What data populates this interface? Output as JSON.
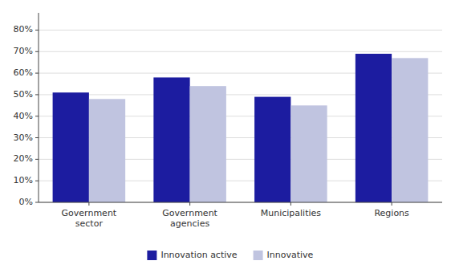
{
  "chart_data": {
    "type": "bar",
    "categories": [
      "Government\nsector",
      "Government\nagencies",
      "Municipalities",
      "Regions"
    ],
    "series": [
      {
        "name": "Innovation active",
        "color": "#1C1CA0",
        "values": [
          0.51,
          0.58,
          0.49,
          0.69
        ]
      },
      {
        "name": "Innovative",
        "color": "#C0C4E0",
        "values": [
          0.48,
          0.54,
          0.45,
          0.67
        ]
      }
    ],
    "ylim": [
      0,
      0.88
    ],
    "yticks": [
      {
        "value": 0.0,
        "label": "0%"
      },
      {
        "value": 0.1,
        "label": "10%"
      },
      {
        "value": 0.2,
        "label": "20%"
      },
      {
        "value": 0.3,
        "label": "30%"
      },
      {
        "value": 0.4,
        "label": "40%"
      },
      {
        "value": 0.5,
        "label": "50%"
      },
      {
        "value": 0.6,
        "label": "60%"
      },
      {
        "value": 0.7,
        "label": "70%"
      },
      {
        "value": 0.8,
        "label": "80%"
      }
    ],
    "grid": true,
    "legend": "bottom"
  }
}
